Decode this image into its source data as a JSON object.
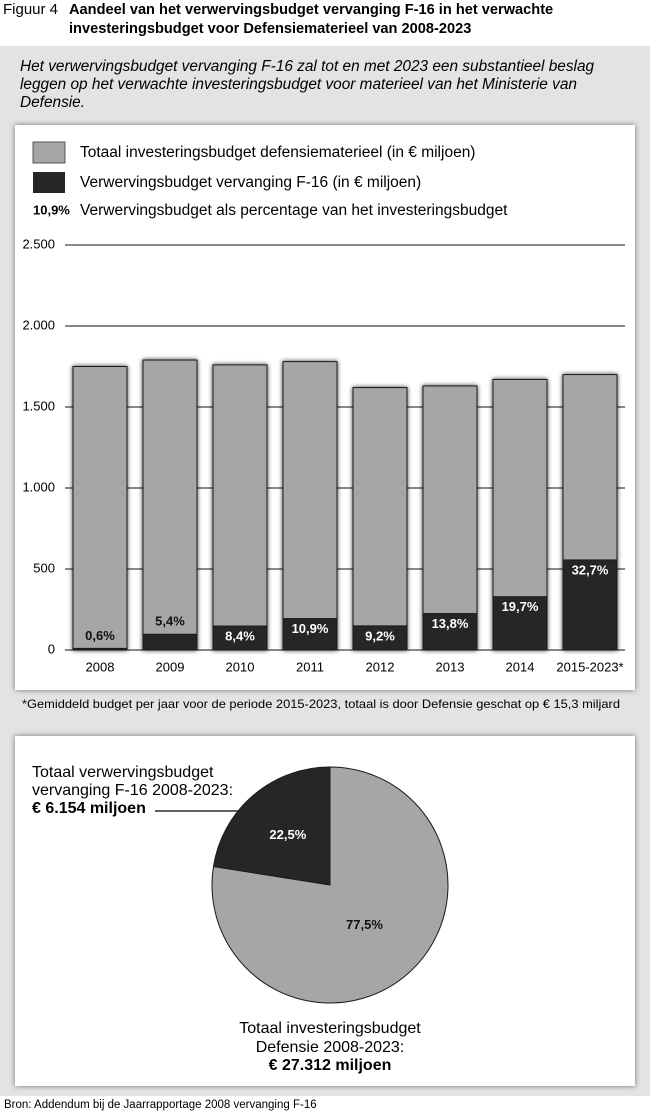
{
  "header": {
    "figure": "Figuur 4",
    "title": "Aandeel van het verwervingsbudget vervanging F-16 in het verwachte investeringsbudget voor Defensiematerieel van 2008-2023"
  },
  "subtitle": "Het verwervingsbudget vervanging F-16 zal tot en met 2023 een substantieel beslag leggen op het verwachte investeringsbudget voor materieel van het Ministerie van Defensie.",
  "chart_data": [
    {
      "type": "bar",
      "categories": [
        "2008",
        "2009",
        "2010",
        "2011",
        "2012",
        "2013",
        "2014",
        "2015-2023*"
      ],
      "series": [
        {
          "name": "Totaal investeringsbudget defensiematerieel (in € miljoen)",
          "color": "#a6a6a6",
          "values": [
            1750,
            1790,
            1760,
            1780,
            1620,
            1630,
            1670,
            1700
          ]
        },
        {
          "name": "Verwervingsbudget vervanging F-16 (in € miljoen)",
          "color": "#262626",
          "values": [
            10,
            97,
            148,
            194,
            149,
            225,
            329,
            556
          ]
        },
        {
          "name": "Verwervingsbudget als percentage van het investeringsbudget",
          "legend_label": "10,9%",
          "values": [
            0.6,
            5.4,
            8.4,
            10.9,
            9.2,
            13.8,
            19.7,
            32.7
          ],
          "value_labels": [
            "0,6%",
            "5,4%",
            "8,4%",
            "10,9%",
            "9,2%",
            "13,8%",
            "19,7%",
            "32,7%"
          ]
        }
      ],
      "ylim": [
        0,
        2500
      ],
      "yticks": [
        0,
        500,
        {
          "value": 1000,
          "label": "1.000"
        },
        {
          "value": 1500,
          "label": "1.500"
        },
        {
          "value": 2000,
          "label": "2.000"
        },
        {
          "value": 2500,
          "label": "2.500"
        }
      ],
      "grid": true
    },
    {
      "type": "pie",
      "categories": [
        "Totaal verwervingsbudget vervanging F-16 2008-2023:",
        "Totaal investeringsbudget Defensie 2008-2023:"
      ],
      "amounts": [
        "€ 6.154 miljoen",
        "€ 27.312 miljoen"
      ],
      "values": [
        22.5,
        77.5
      ],
      "value_labels": [
        "22,5%",
        "77,5%"
      ],
      "colors": [
        "#262626",
        "#a6a6a6"
      ]
    }
  ],
  "footnote": "*Gemiddeld budget per jaar voor de periode 2015-2023, totaal is door Defensie geschat op € 15,3 miljard",
  "source": "Bron: Addendum bij de Jaarrapportage 2008 vervanging F-16"
}
